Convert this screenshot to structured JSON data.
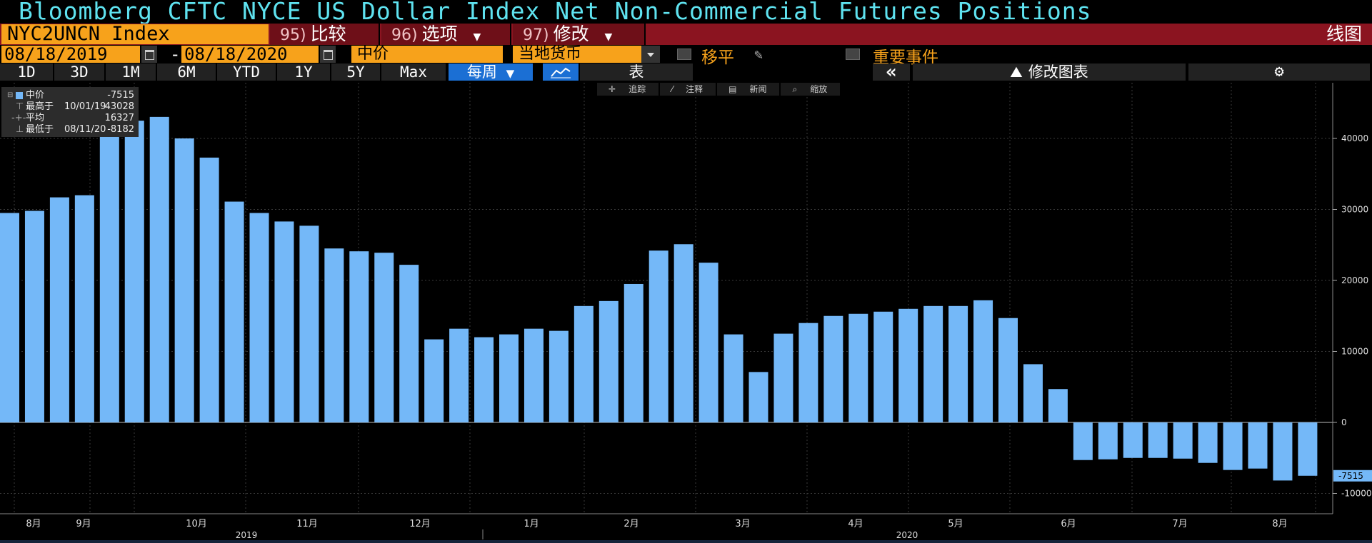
{
  "window": {
    "title": "Bloomberg CFTC NYCE US Dollar Index Net Non-Commercial Futures Positions"
  },
  "toolbar1": {
    "ticker": "NYC2UNCN Index",
    "compare": {
      "num": "95)",
      "label": "比较"
    },
    "options": {
      "num": "96)",
      "label": "选项"
    },
    "modify": {
      "num": "97)",
      "label": "修改"
    },
    "chart_type": "线图"
  },
  "toolbar2": {
    "start_date": "08/18/2019",
    "separator": "-",
    "end_date": "08/18/2020",
    "price_field": "中价",
    "currency": "当地货币",
    "smoothing_label": "移平",
    "events_label": "重要事件"
  },
  "toolbar3": {
    "ranges": [
      "1D",
      "3D",
      "1M",
      "6M",
      "YTD",
      "1Y",
      "5Y",
      "Max"
    ],
    "frequency": "每周",
    "table_label": "表",
    "collapse_label": "«",
    "edit_chart_label": "修改图表"
  },
  "tools": {
    "track": "追踪",
    "annotate": "注释",
    "news": "新闻",
    "zoom": "缩放"
  },
  "legend": {
    "series_name": "中价",
    "last_value": "-7515",
    "high_label": "最高于",
    "high_date": "10/01/19",
    "high_value": "43028",
    "avg_label": "平均",
    "avg_value": "16327",
    "low_label": "最低于",
    "low_date": "08/11/20",
    "low_value": "-8182"
  },
  "colors": {
    "bar": "#74b8f8",
    "title": "#5fe3f0",
    "accent_orange": "#f7a21b",
    "toolbar_red": "#8b1420"
  },
  "chart_data": {
    "type": "bar",
    "ylim": [
      -10000,
      45000
    ],
    "yticks": [
      -10000,
      0,
      10000,
      20000,
      30000,
      40000
    ],
    "last_value_label": "-7515",
    "values": [
      29500,
      29800,
      31700,
      32000,
      40500,
      42500,
      43028,
      40000,
      37300,
      31100,
      29500,
      28300,
      27700,
      24500,
      24100,
      23900,
      22200,
      11700,
      13200,
      12000,
      12400,
      13200,
      12900,
      16400,
      17100,
      19500,
      24200,
      25100,
      22500,
      12400,
      7100,
      12500,
      14000,
      15000,
      15300,
      15600,
      16000,
      16400,
      16400,
      17200,
      14700,
      8200,
      4700,
      -5300,
      -5200,
      -5000,
      -5000,
      -5100,
      -5700,
      -6700,
      -6500,
      -8182,
      -7515
    ],
    "month_labels": [
      "8月",
      "9月",
      "10月",
      "11月",
      "12月",
      "1月",
      "2月",
      "3月",
      "4月",
      "5月",
      "6月",
      "7月",
      "8月"
    ],
    "year_labels": [
      "2019",
      "2020"
    ]
  }
}
